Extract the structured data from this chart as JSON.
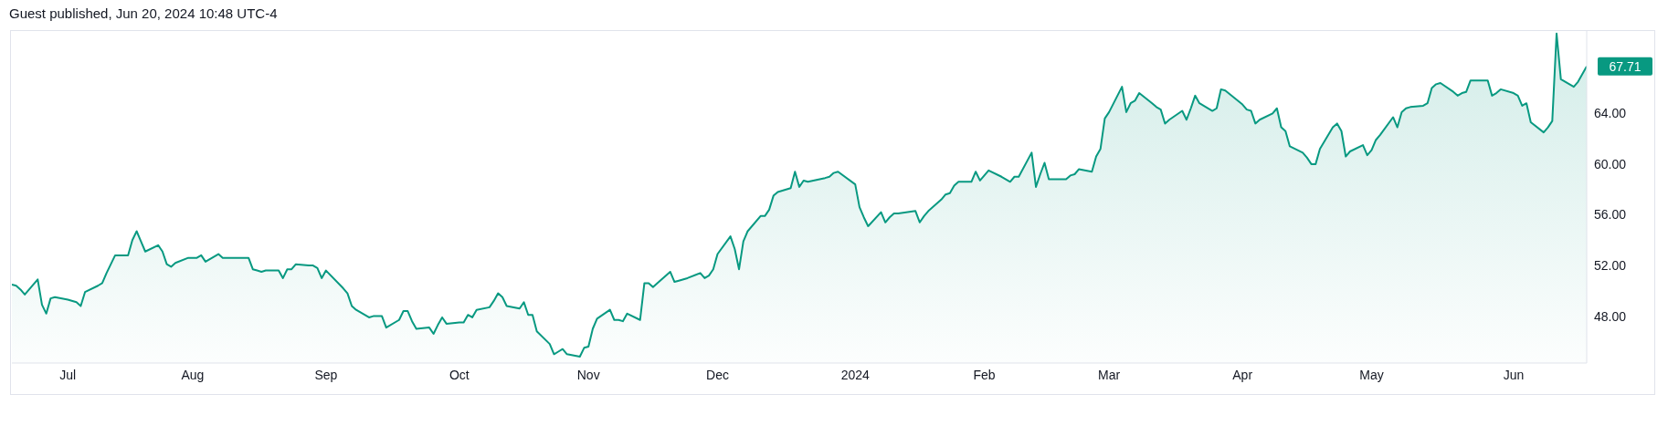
{
  "chart_data": {
    "type": "area",
    "title": "Guest published, Jun 20, 2024 10:48 UTC-4",
    "color": "#089981",
    "x": [
      "2023-06-20",
      "2023-06-21",
      "2023-06-22",
      "2023-06-23",
      "2023-06-26",
      "2023-06-27",
      "2023-06-28",
      "2023-06-29",
      "2023-06-30",
      "2023-07-03",
      "2023-07-05",
      "2023-07-06",
      "2023-07-07",
      "2023-07-10",
      "2023-07-11",
      "2023-07-12",
      "2023-07-13",
      "2023-07-14",
      "2023-07-17",
      "2023-07-18",
      "2023-07-19",
      "2023-07-20",
      "2023-07-21",
      "2023-07-24",
      "2023-07-25",
      "2023-07-26",
      "2023-07-27",
      "2023-07-28",
      "2023-07-31",
      "2023-08-01",
      "2023-08-02",
      "2023-08-03",
      "2023-08-04",
      "2023-08-07",
      "2023-08-08",
      "2023-08-09",
      "2023-08-10",
      "2023-08-11",
      "2023-08-14",
      "2023-08-15",
      "2023-08-16",
      "2023-08-17",
      "2023-08-18",
      "2023-08-21",
      "2023-08-22",
      "2023-08-23",
      "2023-08-24",
      "2023-08-25",
      "2023-08-28",
      "2023-08-29",
      "2023-08-30",
      "2023-08-31",
      "2023-09-01",
      "2023-09-05",
      "2023-09-06",
      "2023-09-07",
      "2023-09-08",
      "2023-09-11",
      "2023-09-12",
      "2023-09-13",
      "2023-09-14",
      "2023-09-15",
      "2023-09-18",
      "2023-09-19",
      "2023-09-20",
      "2023-09-21",
      "2023-09-22",
      "2023-09-25",
      "2023-09-26",
      "2023-09-27",
      "2023-09-28",
      "2023-09-29",
      "2023-10-02",
      "2023-10-03",
      "2023-10-04",
      "2023-10-05",
      "2023-10-06",
      "2023-10-09",
      "2023-10-10",
      "2023-10-11",
      "2023-10-12",
      "2023-10-13",
      "2023-10-16",
      "2023-10-17",
      "2023-10-18",
      "2023-10-19",
      "2023-10-20",
      "2023-10-23",
      "2023-10-24",
      "2023-10-25",
      "2023-10-26",
      "2023-10-27",
      "2023-10-30",
      "2023-10-31",
      "2023-11-01",
      "2023-11-02",
      "2023-11-03",
      "2023-11-06",
      "2023-11-07",
      "2023-11-08",
      "2023-11-09",
      "2023-11-10",
      "2023-11-13",
      "2023-11-14",
      "2023-11-15",
      "2023-11-16",
      "2023-11-17",
      "2023-11-20",
      "2023-11-21",
      "2023-11-22",
      "2023-11-24",
      "2023-11-27",
      "2023-11-28",
      "2023-11-29",
      "2023-11-30",
      "2023-12-01",
      "2023-12-04",
      "2023-12-05",
      "2023-12-06",
      "2023-12-07",
      "2023-12-08",
      "2023-12-11",
      "2023-12-12",
      "2023-12-13",
      "2023-12-14",
      "2023-12-15",
      "2023-12-18",
      "2023-12-19",
      "2023-12-20",
      "2023-12-21",
      "2023-12-22",
      "2023-12-26",
      "2023-12-27",
      "2023-12-28",
      "2023-12-29",
      "2024-01-02",
      "2024-01-03",
      "2024-01-04",
      "2024-01-05",
      "2024-01-08",
      "2024-01-09",
      "2024-01-10",
      "2024-01-11",
      "2024-01-12",
      "2024-01-16",
      "2024-01-17",
      "2024-01-18",
      "2024-01-19",
      "2024-01-22",
      "2024-01-23",
      "2024-01-24",
      "2024-01-25",
      "2024-01-26",
      "2024-01-29",
      "2024-01-30",
      "2024-01-31",
      "2024-02-01",
      "2024-02-02",
      "2024-02-05",
      "2024-02-06",
      "2024-02-07",
      "2024-02-08",
      "2024-02-09",
      "2024-02-12",
      "2024-02-13",
      "2024-02-14",
      "2024-02-15",
      "2024-02-16",
      "2024-02-20",
      "2024-02-21",
      "2024-02-22",
      "2024-02-23",
      "2024-02-26",
      "2024-02-27",
      "2024-02-28",
      "2024-02-29",
      "2024-03-01",
      "2024-03-04",
      "2024-03-05",
      "2024-03-06",
      "2024-03-07",
      "2024-03-08",
      "2024-03-11",
      "2024-03-12",
      "2024-03-13",
      "2024-03-14",
      "2024-03-15",
      "2024-03-18",
      "2024-03-19",
      "2024-03-20",
      "2024-03-21",
      "2024-03-22",
      "2024-03-25",
      "2024-03-26",
      "2024-03-27",
      "2024-03-28",
      "2024-04-01",
      "2024-04-02",
      "2024-04-03",
      "2024-04-04",
      "2024-04-05",
      "2024-04-08",
      "2024-04-09",
      "2024-04-10",
      "2024-04-11",
      "2024-04-12",
      "2024-04-15",
      "2024-04-16",
      "2024-04-17",
      "2024-04-18",
      "2024-04-19",
      "2024-04-22",
      "2024-04-23",
      "2024-04-24",
      "2024-04-25",
      "2024-04-26",
      "2024-04-29",
      "2024-04-30",
      "2024-05-01",
      "2024-05-02",
      "2024-05-03",
      "2024-05-06",
      "2024-05-07",
      "2024-05-08",
      "2024-05-09",
      "2024-05-10",
      "2024-05-13",
      "2024-05-14",
      "2024-05-15",
      "2024-05-16",
      "2024-05-17",
      "2024-05-20",
      "2024-05-21",
      "2024-05-22",
      "2024-05-23",
      "2024-05-24",
      "2024-05-28",
      "2024-05-29",
      "2024-05-30",
      "2024-05-31",
      "2024-06-03",
      "2024-06-04",
      "2024-06-05",
      "2024-06-06",
      "2024-06-07",
      "2024-06-10",
      "2024-06-11",
      "2024-06-12",
      "2024-06-13",
      "2024-06-14",
      "2024-06-17",
      "2024-06-18",
      "2024-06-20"
    ],
    "values": [
      50.5,
      50.4,
      50.1,
      49.7,
      50.9,
      48.9,
      48.2,
      49.4,
      49.5,
      49.3,
      49.1,
      48.8,
      49.9,
      50.4,
      50.6,
      51.4,
      52.1,
      52.8,
      52.8,
      54.0,
      54.7,
      53.9,
      53.1,
      53.6,
      53.1,
      52.1,
      51.9,
      52.2,
      52.6,
      52.6,
      52.6,
      52.8,
      52.3,
      52.9,
      52.6,
      52.6,
      52.6,
      52.6,
      52.6,
      51.7,
      51.6,
      51.5,
      51.6,
      51.6,
      51.0,
      51.7,
      51.7,
      52.1,
      52.0,
      52.0,
      51.8,
      51.0,
      51.6,
      50.2,
      49.8,
      48.8,
      48.5,
      47.9,
      48.0,
      48.0,
      48.0,
      47.1,
      47.7,
      48.4,
      48.4,
      47.6,
      47.0,
      47.1,
      46.6,
      47.3,
      47.9,
      47.4,
      47.5,
      47.5,
      48.1,
      47.9,
      48.5,
      48.7,
      49.2,
      49.8,
      49.5,
      48.8,
      48.6,
      49.1,
      48.1,
      48.1,
      46.8,
      45.8,
      45.0,
      45.2,
      45.4,
      45.0,
      44.8,
      45.5,
      45.6,
      47.0,
      47.8,
      48.5,
      47.7,
      47.7,
      47.6,
      48.2,
      47.7,
      50.6,
      50.6,
      50.3,
      50.6,
      51.5,
      50.7,
      50.8,
      51.0,
      51.4,
      51.0,
      51.2,
      51.7,
      52.9,
      54.3,
      53.3,
      51.7,
      53.9,
      54.7,
      55.9,
      55.9,
      56.4,
      57.5,
      57.8,
      58.1,
      59.4,
      58.2,
      58.7,
      58.6,
      58.9,
      59.0,
      59.3,
      59.4,
      58.4,
      56.6,
      55.8,
      55.1,
      56.2,
      55.4,
      55.8,
      56.1,
      56.1,
      56.3,
      55.4,
      55.9,
      56.3,
      57.2,
      57.6,
      57.7,
      58.3,
      58.6,
      58.6,
      59.4,
      58.7,
      59.1,
      59.5,
      59.0,
      58.8,
      58.6,
      59.0,
      59.0,
      60.9,
      58.2,
      59.2,
      60.1,
      58.8,
      58.8,
      59.1,
      59.2,
      59.6,
      59.4,
      60.6,
      61.2,
      63.6,
      64.1,
      66.1,
      64.1,
      64.8,
      65.0,
      65.6,
      64.8,
      64.5,
      64.3,
      63.2,
      63.5,
      64.2,
      63.5,
      64.4,
      65.4,
      64.8,
      64.2,
      64.4,
      65.9,
      65.8,
      64.7,
      64.3,
      64.2,
      63.2,
      63.5,
      64.0,
      64.4,
      62.9,
      62.6,
      61.4,
      60.9,
      60.5,
      60.0,
      60.0,
      61.2,
      62.9,
      63.2,
      62.6,
      60.6,
      61.0,
      61.5,
      60.7,
      61.1,
      61.9,
      62.3,
      63.7,
      62.9,
      64.1,
      64.4,
      64.5,
      64.6,
      64.8,
      66.0,
      66.3,
      66.4,
      65.7,
      65.4,
      65.6,
      65.7,
      66.6,
      66.6,
      65.4,
      65.6,
      65.9,
      65.6,
      65.4,
      64.6,
      64.8,
      63.3,
      62.5,
      62.9,
      63.4,
      70.3,
      66.7,
      66.1,
      66.5,
      67.71
    ],
    "xlim": [
      "2023-06-20",
      "2024-06-20"
    ],
    "ylim": [
      44.3,
      70.5
    ],
    "xticks": [
      {
        "value": "2023-07-03",
        "label": "Jul"
      },
      {
        "value": "2023-08-01",
        "label": "Aug"
      },
      {
        "value": "2023-09-01",
        "label": "Sep"
      },
      {
        "value": "2023-10-02",
        "label": "Oct"
      },
      {
        "value": "2023-11-01",
        "label": "Nov"
      },
      {
        "value": "2023-12-01",
        "label": "Dec"
      },
      {
        "value": "2024-01-02",
        "label": "2024"
      },
      {
        "value": "2024-02-01",
        "label": "Feb"
      },
      {
        "value": "2024-03-01",
        "label": "Mar"
      },
      {
        "value": "2024-04-01",
        "label": "Apr"
      },
      {
        "value": "2024-05-01",
        "label": "May"
      },
      {
        "value": "2024-06-03",
        "label": "Jun"
      }
    ],
    "yticks": [
      {
        "value": 48,
        "label": "48.00"
      },
      {
        "value": 52,
        "label": "52.00"
      },
      {
        "value": 56,
        "label": "56.00"
      },
      {
        "value": 60,
        "label": "60.00"
      },
      {
        "value": 64,
        "label": "64.00"
      }
    ],
    "annotations": [
      {
        "text": "67.71",
        "x": "2024-06-20",
        "y": 67.71
      }
    ]
  }
}
